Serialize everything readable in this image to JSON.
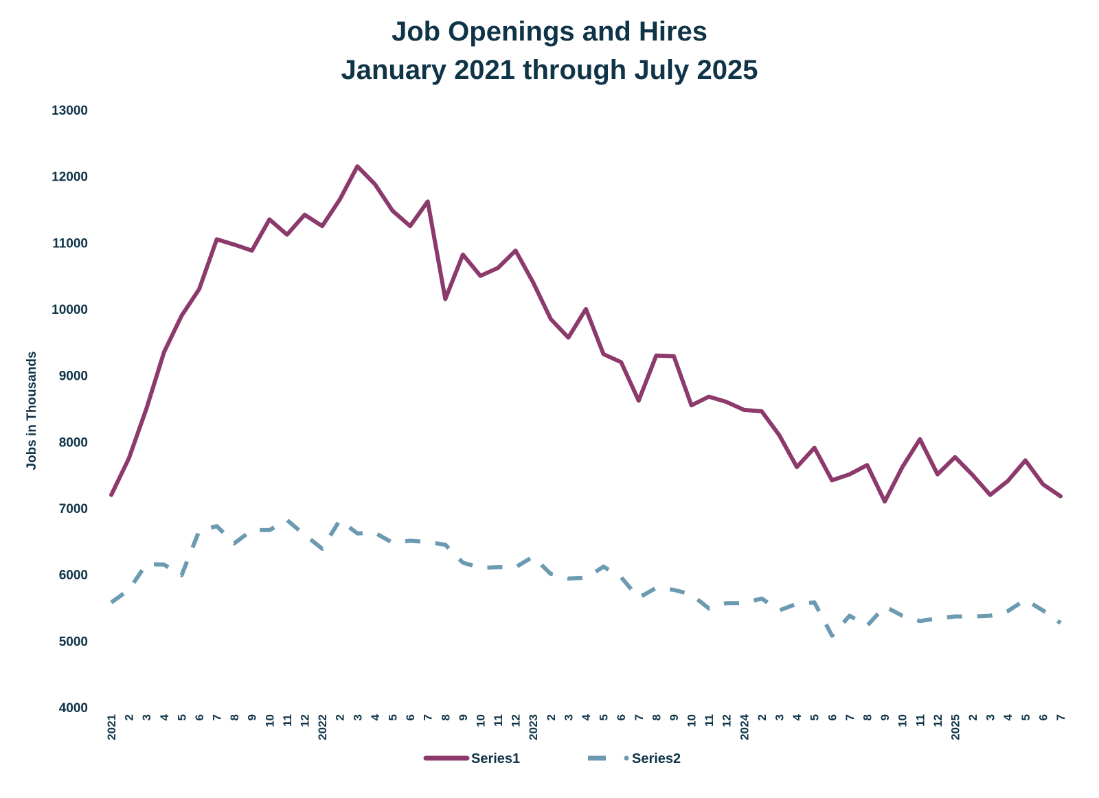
{
  "chart_data": {
    "type": "line",
    "title": "Job Openings and Hires",
    "subtitle": "January 2021 through July 2025",
    "ylabel": "Jobs in Thousands",
    "xlabel": "",
    "ylim": [
      4000,
      13000
    ],
    "yticks": [
      4000,
      5000,
      6000,
      7000,
      8000,
      9000,
      10000,
      11000,
      12000,
      13000
    ],
    "grid": false,
    "legend_position": "bottom",
    "categories": [
      "2021",
      "2",
      "3",
      "4",
      "5",
      "6",
      "7",
      "8",
      "9",
      "10",
      "11",
      "12",
      "2022",
      "2",
      "3",
      "4",
      "5",
      "6",
      "7",
      "8",
      "9",
      "10",
      "11",
      "12",
      "2023",
      "2",
      "3",
      "4",
      "5",
      "6",
      "7",
      "8",
      "9",
      "10",
      "11",
      "12",
      "2024",
      "2",
      "3",
      "4",
      "5",
      "6",
      "7",
      "8",
      "9",
      "10",
      "11",
      "12",
      "2025",
      "2",
      "3",
      "4",
      "5",
      "6",
      "7"
    ],
    "series": [
      {
        "name": "Series1",
        "color": "#8b3a6b",
        "style": "solid",
        "values": [
          7200,
          7750,
          8500,
          9350,
          9900,
          10300,
          11050,
          10970,
          10880,
          11350,
          11120,
          11420,
          11250,
          11650,
          12150,
          11880,
          11480,
          11250,
          11620,
          10150,
          10820,
          10500,
          10620,
          10880,
          10400,
          9850,
          9570,
          10000,
          9320,
          9200,
          8620,
          9300,
          9290,
          8550,
          8680,
          8600,
          8480,
          8460,
          8100,
          7620,
          7910,
          7420,
          7510,
          7650,
          7100,
          7620,
          8040,
          7510,
          7770,
          7500,
          7200,
          7410,
          7720,
          7360,
          7180
        ]
      },
      {
        "name": "Series2",
        "color": "#6c9bb1",
        "style": "dashed",
        "values": [
          5580,
          5770,
          6160,
          6150,
          5990,
          6660,
          6730,
          6470,
          6670,
          6670,
          6820,
          6600,
          6390,
          6820,
          6620,
          6630,
          6480,
          6510,
          6490,
          6450,
          6180,
          6100,
          6110,
          6110,
          6270,
          6010,
          5940,
          5950,
          6120,
          5960,
          5650,
          5800,
          5770,
          5700,
          5490,
          5570,
          5570,
          5640,
          5460,
          5560,
          5580,
          5080,
          5380,
          5230,
          5520,
          5380,
          5300,
          5340,
          5370,
          5370,
          5380,
          5450,
          5620,
          5460,
          5270
        ]
      }
    ]
  }
}
